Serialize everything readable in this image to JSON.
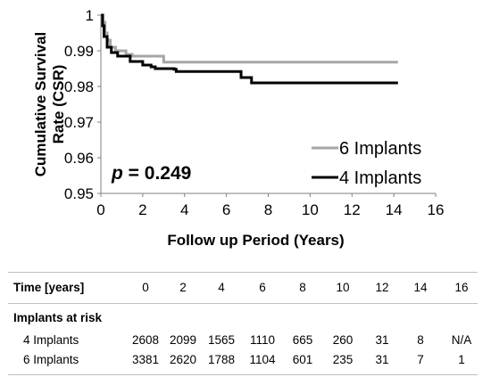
{
  "chart_data": {
    "type": "line",
    "title": "",
    "xlabel": "Follow up Period (Years)",
    "ylabel": [
      "Cumulative Survival",
      "Rate (CSR)"
    ],
    "xlim": [
      0,
      16
    ],
    "ylim": [
      0.95,
      1
    ],
    "xticks": [
      0,
      2,
      4,
      6,
      8,
      10,
      12,
      14,
      16
    ],
    "yticks": [
      {
        "v": 0.95,
        "label": "0.95"
      },
      {
        "v": 0.96,
        "label": "0.96"
      },
      {
        "v": 0.97,
        "label": "0.97"
      },
      {
        "v": 0.98,
        "label": "0.98"
      },
      {
        "v": 0.99,
        "label": "0.99"
      },
      {
        "v": 1.0,
        "label": "1"
      }
    ],
    "annotation": {
      "p_symbol": "p",
      "p_rest": " = 0.249"
    },
    "legend_placement": "bottom-right",
    "series": [
      {
        "name": "6 Implants",
        "color": "#a6a6a6",
        "step": true,
        "points": [
          [
            0,
            1.0
          ],
          [
            0.1,
            0.998
          ],
          [
            0.2,
            0.995
          ],
          [
            0.3,
            0.993
          ],
          [
            0.45,
            0.991
          ],
          [
            0.7,
            0.99
          ],
          [
            1.2,
            0.989
          ],
          [
            1.5,
            0.9885
          ],
          [
            3.0,
            0.9868
          ],
          [
            14.2,
            0.9868
          ]
        ]
      },
      {
        "name": "4 Implants",
        "color": "#000000",
        "step": true,
        "points": [
          [
            0,
            1.0
          ],
          [
            0.08,
            0.997
          ],
          [
            0.15,
            0.994
          ],
          [
            0.3,
            0.991
          ],
          [
            0.5,
            0.9895
          ],
          [
            0.8,
            0.9885
          ],
          [
            1.4,
            0.987
          ],
          [
            2.0,
            0.986
          ],
          [
            2.4,
            0.9855
          ],
          [
            2.6,
            0.985
          ],
          [
            3.5,
            0.9848
          ],
          [
            3.6,
            0.9842
          ],
          [
            6.6,
            0.9842
          ],
          [
            6.7,
            0.9825
          ],
          [
            7.2,
            0.981
          ],
          [
            14.2,
            0.981
          ]
        ]
      }
    ]
  },
  "table": {
    "header_label": "Time [years]",
    "times": [
      "0",
      "2",
      "4",
      "6",
      "8",
      "10",
      "12",
      "14",
      "16"
    ],
    "section_label": "Implants at risk",
    "rows": [
      {
        "label": "4 Implants",
        "values": [
          "2608",
          "2099",
          "1565",
          "1110",
          "665",
          "260",
          "31",
          "8",
          "N/A"
        ]
      },
      {
        "label": "6 Implants",
        "values": [
          "3381",
          "2620",
          "1788",
          "1104",
          "601",
          "235",
          "31",
          "7",
          "1"
        ]
      }
    ]
  }
}
